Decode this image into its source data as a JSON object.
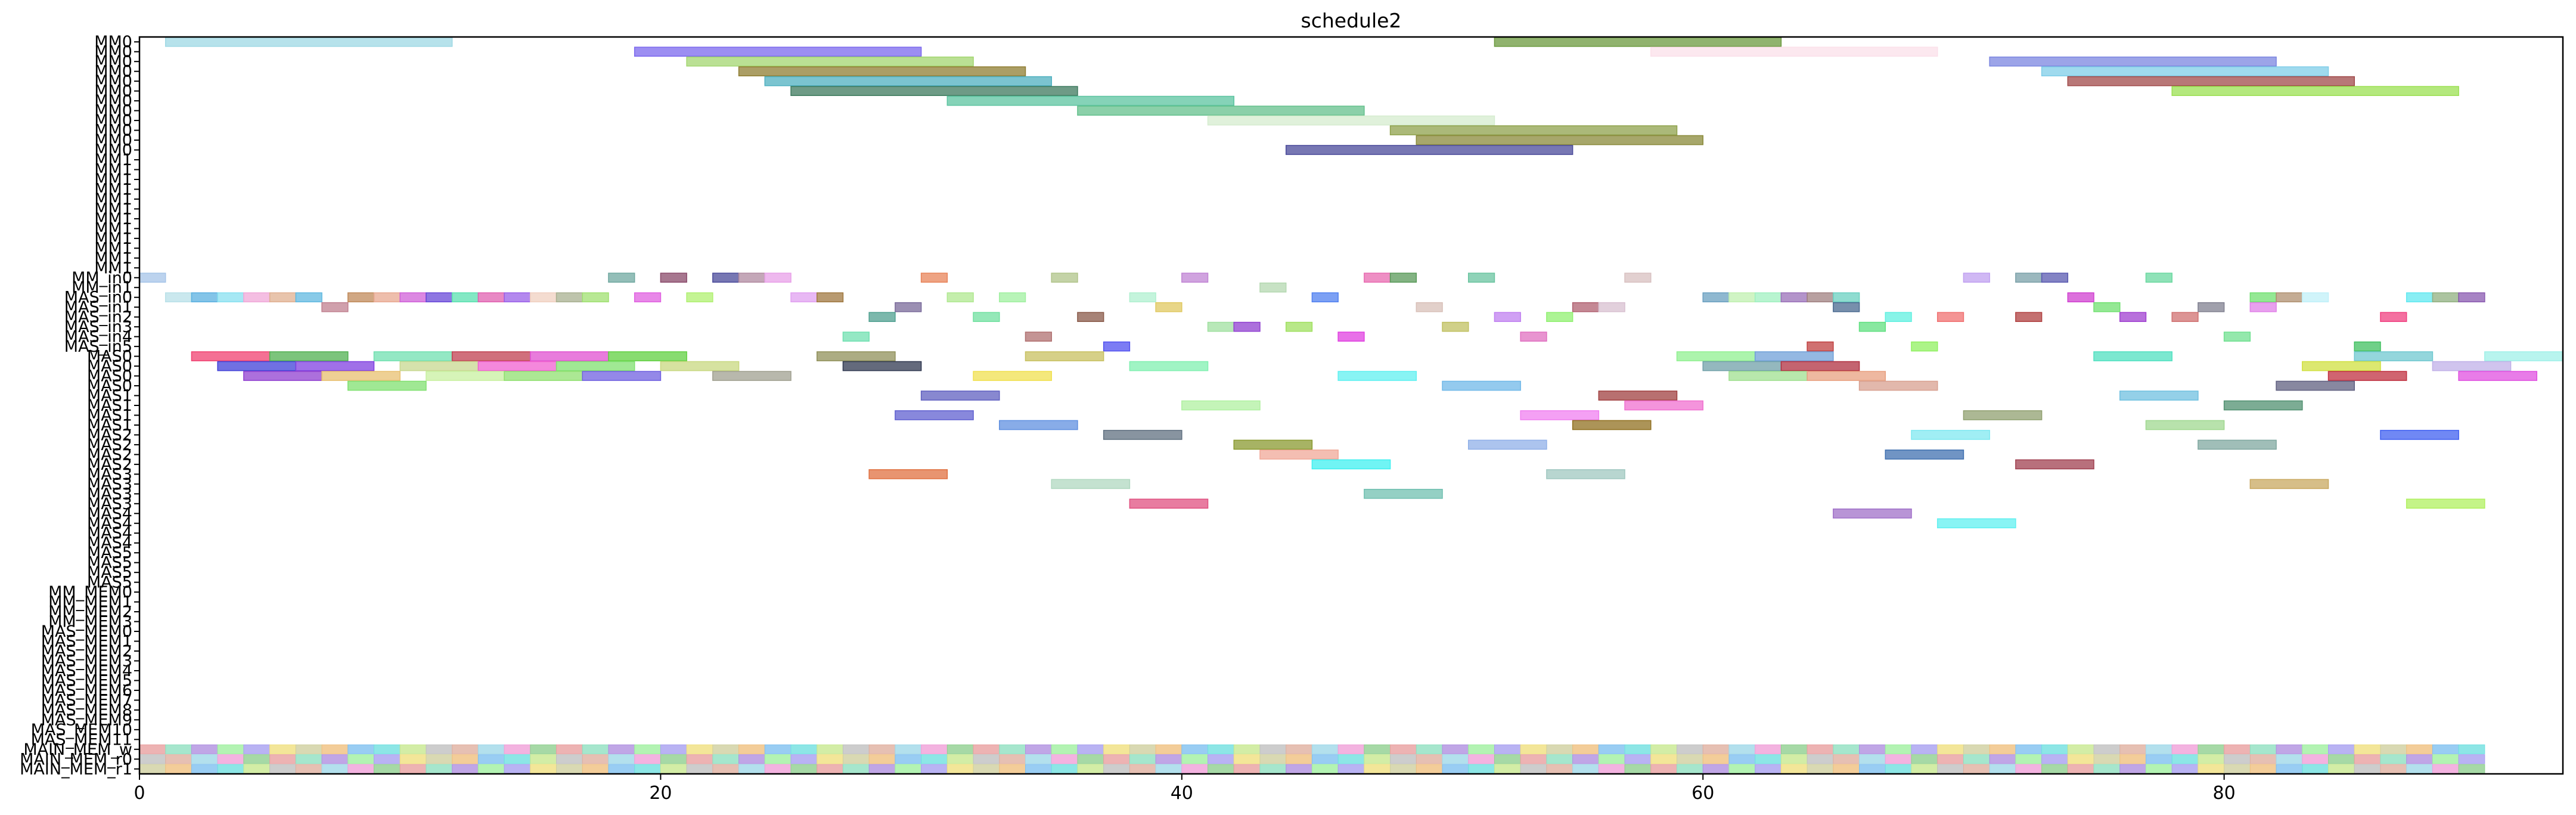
{
  "chart_data": {
    "type": "gantt",
    "title": "schedule2",
    "xlabel": "",
    "ylabel": "",
    "xlim": [
      0,
      93
    ],
    "xticks": [
      0,
      20,
      40,
      60,
      80
    ],
    "grid": false,
    "legend": "none",
    "rows": [
      "MM0",
      "MM0",
      "MM0",
      "MM0",
      "MM0",
      "MM0",
      "MM0",
      "MM0",
      "MM0",
      "MM0",
      "MM0",
      "MM0",
      "MM1",
      "MM1",
      "MM1",
      "MM1",
      "MM1",
      "MM1",
      "MM1",
      "MM1",
      "MM1",
      "MM1",
      "MM1",
      "MM1",
      "MM_in0",
      "MM_in1",
      "MAS_in0",
      "MAS_in1",
      "MAS_in2",
      "MAS_in3",
      "MAS_in4",
      "MAS_in5",
      "MAS0",
      "MAS0",
      "MAS0",
      "MAS0",
      "MAS1",
      "MAS1",
      "MAS1",
      "MAS1",
      "MAS2",
      "MAS2",
      "MAS2",
      "MAS2",
      "MAS3",
      "MAS3",
      "MAS3",
      "MAS3",
      "MAS4",
      "MAS4",
      "MAS4",
      "MAS4",
      "MAS5",
      "MAS5",
      "MAS5",
      "MAS5",
      "MM_MEM0",
      "MM_MEM1",
      "MM_MEM2",
      "MM_MEM3",
      "MAS_MEM0",
      "MAS_MEM1",
      "MAS_MEM2",
      "MAS_MEM3",
      "MAS_MEM4",
      "MAS_MEM5",
      "MAS_MEM6",
      "MAS_MEM7",
      "MAS_MEM8",
      "MAS_MEM9",
      "MAS_MEM10",
      "MAS_MEM11",
      "MAIN_MEM_w",
      "MAIN_MEM_r0",
      "MAIN_MEM_r1"
    ],
    "bars": [
      {
        "row": 0,
        "start": 1,
        "end": 12,
        "color": "#9ed8e4"
      },
      {
        "row": 0,
        "start": 52,
        "end": 63,
        "color": "#6b9a3e"
      },
      {
        "row": 1,
        "start": 19,
        "end": 30,
        "color": "#7b68ee"
      },
      {
        "row": 1,
        "start": 58,
        "end": 69,
        "color": "#fbe0ea"
      },
      {
        "row": 2,
        "start": 21,
        "end": 32,
        "color": "#a3d670"
      },
      {
        "row": 2,
        "start": 71,
        "end": 82,
        "color": "#7b86e0"
      },
      {
        "row": 3,
        "start": 23,
        "end": 34,
        "color": "#8f7d32"
      },
      {
        "row": 3,
        "start": 73,
        "end": 84,
        "color": "#7fcde8"
      },
      {
        "row": 4,
        "start": 24,
        "end": 35,
        "color": "#4fb0c0"
      },
      {
        "row": 4,
        "start": 74,
        "end": 85,
        "color": "#a04a4a"
      },
      {
        "row": 5,
        "start": 25,
        "end": 36,
        "color": "#3e7a5e"
      },
      {
        "row": 5,
        "start": 78,
        "end": 89,
        "color": "#9be051"
      },
      {
        "row": 6,
        "start": 31,
        "end": 42,
        "color": "#5cc4a0"
      },
      {
        "row": 7,
        "start": 36,
        "end": 47,
        "color": "#64c08c"
      },
      {
        "row": 8,
        "start": 41,
        "end": 52,
        "color": "#d5eccf"
      },
      {
        "row": 9,
        "start": 48,
        "end": 59,
        "color": "#8fa24c"
      },
      {
        "row": 10,
        "start": 49,
        "end": 60,
        "color": "#8a8a3a"
      },
      {
        "row": 11,
        "start": 44,
        "end": 55,
        "color": "#4a4a9a"
      },
      {
        "row": 24,
        "start": 0,
        "end": 1,
        "color": "#a5c4e8"
      },
      {
        "row": 24,
        "start": 18,
        "end": 19,
        "color": "#6fa8a0"
      },
      {
        "row": 24,
        "start": 20,
        "end": 21,
        "color": "#8a4a6a"
      },
      {
        "row": 24,
        "start": 22,
        "end": 23,
        "color": "#4a4a9a"
      },
      {
        "row": 24,
        "start": 23,
        "end": 24,
        "color": "#b08aa0"
      },
      {
        "row": 24,
        "start": 24,
        "end": 25,
        "color": "#e8a0e8"
      },
      {
        "row": 24,
        "start": 30,
        "end": 31,
        "color": "#e8845a"
      },
      {
        "row": 24,
        "start": 35,
        "end": 36,
        "color": "#b0c48a"
      },
      {
        "row": 24,
        "start": 40,
        "end": 41,
        "color": "#c084d4"
      },
      {
        "row": 24,
        "start": 47,
        "end": 48,
        "color": "#e86ab0"
      },
      {
        "row": 24,
        "start": 48,
        "end": 49,
        "color": "#5a9a5a"
      },
      {
        "row": 24,
        "start": 51,
        "end": 52,
        "color": "#6ac4a0"
      },
      {
        "row": 24,
        "start": 57,
        "end": 58,
        "color": "#d8c0c0"
      },
      {
        "row": 24,
        "start": 70,
        "end": 71,
        "color": "#c0a0f0"
      },
      {
        "row": 24,
        "start": 72,
        "end": 73,
        "color": "#7aa0a8"
      },
      {
        "row": 24,
        "start": 73,
        "end": 74,
        "color": "#5a5ab0"
      },
      {
        "row": 24,
        "start": 77,
        "end": 78,
        "color": "#6ad8a0"
      },
      {
        "row": 25,
        "start": 43,
        "end": 44,
        "color": "#b4d8b0"
      },
      {
        "row": 26,
        "start": 1,
        "end": 2,
        "color": "#b8e0e8"
      },
      {
        "row": 26,
        "start": 2,
        "end": 3,
        "color": "#5ab0e0"
      },
      {
        "row": 26,
        "start": 3,
        "end": 4,
        "color": "#88e0f0"
      },
      {
        "row": 26,
        "start": 4,
        "end": 5,
        "color": "#f0a8d8"
      },
      {
        "row": 26,
        "start": 5,
        "end": 6,
        "color": "#e0b090"
      },
      {
        "row": 26,
        "start": 6,
        "end": 7,
        "color": "#60b8e0"
      },
      {
        "row": 26,
        "start": 8,
        "end": 9,
        "color": "#c08a5a"
      },
      {
        "row": 26,
        "start": 9,
        "end": 10,
        "color": "#e8a890"
      },
      {
        "row": 26,
        "start": 10,
        "end": 11,
        "color": "#d060d8"
      },
      {
        "row": 26,
        "start": 11,
        "end": 12,
        "color": "#6848d8"
      },
      {
        "row": 26,
        "start": 12,
        "end": 13,
        "color": "#5ae0b0"
      },
      {
        "row": 26,
        "start": 13,
        "end": 14,
        "color": "#e060b0"
      },
      {
        "row": 26,
        "start": 14,
        "end": 15,
        "color": "#9a60e8"
      },
      {
        "row": 26,
        "start": 15,
        "end": 16,
        "color": "#f0d0c0"
      },
      {
        "row": 26,
        "start": 16,
        "end": 17,
        "color": "#a8b090"
      },
      {
        "row": 26,
        "start": 17,
        "end": 18,
        "color": "#a0e070"
      },
      {
        "row": 26,
        "start": 19,
        "end": 20,
        "color": "#e060e0"
      },
      {
        "row": 26,
        "start": 21,
        "end": 22,
        "color": "#b0f070"
      },
      {
        "row": 26,
        "start": 25,
        "end": 26,
        "color": "#e0a0f0"
      },
      {
        "row": 26,
        "start": 26,
        "end": 27,
        "color": "#a07840"
      },
      {
        "row": 26,
        "start": 31,
        "end": 32,
        "color": "#b0e890"
      },
      {
        "row": 26,
        "start": 33,
        "end": 34,
        "color": "#a0f0a0"
      },
      {
        "row": 26,
        "start": 38,
        "end": 39,
        "color": "#b0f0d0"
      },
      {
        "row": 26,
        "start": 45,
        "end": 46,
        "color": "#5080f0"
      },
      {
        "row": 26,
        "start": 60,
        "end": 61,
        "color": "#6aa0c0"
      },
      {
        "row": 26,
        "start": 61,
        "end": 62,
        "color": "#c0f0b0"
      },
      {
        "row": 26,
        "start": 62,
        "end": 63,
        "color": "#a0f0c0"
      },
      {
        "row": 26,
        "start": 63,
        "end": 64,
        "color": "#9a70b8"
      },
      {
        "row": 26,
        "start": 64,
        "end": 65,
        "color": "#a08080"
      },
      {
        "row": 26,
        "start": 65,
        "end": 66,
        "color": "#6ad0c0"
      },
      {
        "row": 26,
        "start": 74,
        "end": 75,
        "color": "#d040d0"
      },
      {
        "row": 26,
        "start": 81,
        "end": 82,
        "color": "#70e070"
      },
      {
        "row": 26,
        "start": 82,
        "end": 83,
        "color": "#b09070"
      },
      {
        "row": 26,
        "start": 83,
        "end": 84,
        "color": "#c0f0f8"
      },
      {
        "row": 26,
        "start": 87,
        "end": 88,
        "color": "#60e8f0"
      },
      {
        "row": 26,
        "start": 88,
        "end": 89,
        "color": "#90b080"
      },
      {
        "row": 26,
        "start": 89,
        "end": 90,
        "color": "#8a5ab0"
      },
      {
        "row": 27,
        "start": 7,
        "end": 8,
        "color": "#c08090"
      },
      {
        "row": 27,
        "start": 29,
        "end": 30,
        "color": "#7a6a9a"
      },
      {
        "row": 27,
        "start": 39,
        "end": 40,
        "color": "#e0c860"
      },
      {
        "row": 27,
        "start": 49,
        "end": 50,
        "color": "#d8c0b8"
      },
      {
        "row": 27,
        "start": 55,
        "end": 56,
        "color": "#b06070"
      },
      {
        "row": 27,
        "start": 56,
        "end": 57,
        "color": "#d8c0d0"
      },
      {
        "row": 27,
        "start": 65,
        "end": 66,
        "color": "#4a6a90"
      },
      {
        "row": 27,
        "start": 75,
        "end": 76,
        "color": "#70e070"
      },
      {
        "row": 27,
        "start": 79,
        "end": 80,
        "color": "#808090"
      },
      {
        "row": 27,
        "start": 81,
        "end": 82,
        "color": "#e080e8"
      },
      {
        "row": 28,
        "start": 28,
        "end": 29,
        "color": "#50a090"
      },
      {
        "row": 28,
        "start": 32,
        "end": 33,
        "color": "#70e0a0"
      },
      {
        "row": 28,
        "start": 36,
        "end": 37,
        "color": "#8a5a4a"
      },
      {
        "row": 28,
        "start": 52,
        "end": 53,
        "color": "#c080f0"
      },
      {
        "row": 28,
        "start": 54,
        "end": 55,
        "color": "#90f070"
      },
      {
        "row": 28,
        "start": 67,
        "end": 68,
        "color": "#60f0e0"
      },
      {
        "row": 28,
        "start": 69,
        "end": 70,
        "color": "#f07070"
      },
      {
        "row": 28,
        "start": 72,
        "end": 73,
        "color": "#b04040"
      },
      {
        "row": 28,
        "start": 76,
        "end": 77,
        "color": "#a040d0"
      },
      {
        "row": 28,
        "start": 78,
        "end": 79,
        "color": "#d07070"
      },
      {
        "row": 28,
        "start": 86,
        "end": 87,
        "color": "#f04080"
      },
      {
        "row": 29,
        "start": 41,
        "end": 42,
        "color": "#a0e0a0"
      },
      {
        "row": 29,
        "start": 42,
        "end": 43,
        "color": "#9040d0"
      },
      {
        "row": 29,
        "start": 44,
        "end": 45,
        "color": "#a0e060"
      },
      {
        "row": 29,
        "start": 50,
        "end": 51,
        "color": "#c0c060"
      },
      {
        "row": 29,
        "start": 66,
        "end": 67,
        "color": "#60e080"
      },
      {
        "row": 30,
        "start": 27,
        "end": 28,
        "color": "#70e0b0"
      },
      {
        "row": 30,
        "start": 34,
        "end": 35,
        "color": "#b07070"
      },
      {
        "row": 30,
        "start": 46,
        "end": 47,
        "color": "#e040e0"
      },
      {
        "row": 30,
        "start": 53,
        "end": 54,
        "color": "#e070c0"
      },
      {
        "row": 30,
        "start": 80,
        "end": 81,
        "color": "#70e090"
      },
      {
        "row": 31,
        "start": 37,
        "end": 38,
        "color": "#5050f0"
      },
      {
        "row": 31,
        "start": 64,
        "end": 65,
        "color": "#c04040"
      },
      {
        "row": 31,
        "start": 68,
        "end": 69,
        "color": "#90f060"
      },
      {
        "row": 31,
        "start": 85,
        "end": 86,
        "color": "#40c060"
      },
      {
        "row": 32,
        "start": 2,
        "end": 5,
        "color": "#f04070"
      },
      {
        "row": 32,
        "start": 5,
        "end": 8,
        "color": "#50b050"
      },
      {
        "row": 32,
        "start": 9,
        "end": 12,
        "color": "#70e0b0"
      },
      {
        "row": 32,
        "start": 12,
        "end": 15,
        "color": "#c04050"
      },
      {
        "row": 32,
        "start": 15,
        "end": 18,
        "color": "#e050d0"
      },
      {
        "row": 32,
        "start": 18,
        "end": 21,
        "color": "#60d040"
      },
      {
        "row": 32,
        "start": 26,
        "end": 29,
        "color": "#90905a"
      },
      {
        "row": 32,
        "start": 34,
        "end": 37,
        "color": "#c8c060"
      },
      {
        "row": 32,
        "start": 59,
        "end": 62,
        "color": "#90f090"
      },
      {
        "row": 32,
        "start": 62,
        "end": 65,
        "color": "#70a0d8"
      },
      {
        "row": 32,
        "start": 75,
        "end": 78,
        "color": "#50e0c0"
      },
      {
        "row": 32,
        "start": 85,
        "end": 88,
        "color": "#70c8d0"
      },
      {
        "row": 32,
        "start": 90,
        "end": 93,
        "color": "#a0f0e8"
      },
      {
        "row": 33,
        "start": 3,
        "end": 6,
        "color": "#4040d8"
      },
      {
        "row": 33,
        "start": 6,
        "end": 9,
        "color": "#8040e0"
      },
      {
        "row": 33,
        "start": 10,
        "end": 13,
        "color": "#c8d890"
      },
      {
        "row": 33,
        "start": 13,
        "end": 16,
        "color": "#f060d0"
      },
      {
        "row": 33,
        "start": 16,
        "end": 19,
        "color": "#80e070"
      },
      {
        "row": 33,
        "start": 20,
        "end": 23,
        "color": "#c8d880"
      },
      {
        "row": 33,
        "start": 27,
        "end": 30,
        "color": "#303850"
      },
      {
        "row": 33,
        "start": 38,
        "end": 41,
        "color": "#80f0b0"
      },
      {
        "row": 33,
        "start": 60,
        "end": 63,
        "color": "#70a0a8"
      },
      {
        "row": 33,
        "start": 63,
        "end": 66,
        "color": "#b03040"
      },
      {
        "row": 33,
        "start": 83,
        "end": 86,
        "color": "#d0e040"
      },
      {
        "row": 33,
        "start": 88,
        "end": 91,
        "color": "#c0b0e8"
      },
      {
        "row": 34,
        "start": 4,
        "end": 7,
        "color": "#9040d0"
      },
      {
        "row": 34,
        "start": 7,
        "end": 10,
        "color": "#e8c070"
      },
      {
        "row": 34,
        "start": 11,
        "end": 14,
        "color": "#c8f0a0"
      },
      {
        "row": 34,
        "start": 14,
        "end": 17,
        "color": "#90e070"
      },
      {
        "row": 34,
        "start": 17,
        "end": 20,
        "color": "#7060e0"
      },
      {
        "row": 34,
        "start": 22,
        "end": 25,
        "color": "#a0a090"
      },
      {
        "row": 34,
        "start": 32,
        "end": 35,
        "color": "#f0e050"
      },
      {
        "row": 34,
        "start": 46,
        "end": 49,
        "color": "#60f0f0"
      },
      {
        "row": 34,
        "start": 61,
        "end": 64,
        "color": "#a0e090"
      },
      {
        "row": 34,
        "start": 64,
        "end": 67,
        "color": "#e8a080"
      },
      {
        "row": 34,
        "start": 84,
        "end": 87,
        "color": "#c03040"
      },
      {
        "row": 34,
        "start": 89,
        "end": 92,
        "color": "#e050e0"
      },
      {
        "row": 35,
        "start": 8,
        "end": 11,
        "color": "#80e070"
      },
      {
        "row": 35,
        "start": 50,
        "end": 53,
        "color": "#70b8e8"
      },
      {
        "row": 35,
        "start": 66,
        "end": 69,
        "color": "#d8a090"
      },
      {
        "row": 35,
        "start": 82,
        "end": 85,
        "color": "#606080"
      },
      {
        "row": 36,
        "start": 30,
        "end": 33,
        "color": "#6060c0"
      },
      {
        "row": 36,
        "start": 56,
        "end": 59,
        "color": "#a04040"
      },
      {
        "row": 36,
        "start": 76,
        "end": 79,
        "color": "#70c0e0"
      },
      {
        "row": 37,
        "start": 40,
        "end": 43,
        "color": "#b0f0a0"
      },
      {
        "row": 37,
        "start": 57,
        "end": 60,
        "color": "#f070d0"
      },
      {
        "row": 37,
        "start": 80,
        "end": 83,
        "color": "#509070"
      },
      {
        "row": 38,
        "start": 29,
        "end": 32,
        "color": "#6060d0"
      },
      {
        "row": 38,
        "start": 53,
        "end": 56,
        "color": "#f080f0"
      },
      {
        "row": 38,
        "start": 70,
        "end": 73,
        "color": "#90a070"
      },
      {
        "row": 39,
        "start": 33,
        "end": 36,
        "color": "#6090e0"
      },
      {
        "row": 39,
        "start": 55,
        "end": 58,
        "color": "#907020"
      },
      {
        "row": 39,
        "start": 77,
        "end": 80,
        "color": "#a0d890"
      },
      {
        "row": 40,
        "start": 37,
        "end": 40,
        "color": "#607080"
      },
      {
        "row": 40,
        "start": 68,
        "end": 71,
        "color": "#80e8f0"
      },
      {
        "row": 40,
        "start": 86,
        "end": 89,
        "color": "#4060f0"
      },
      {
        "row": 41,
        "start": 42,
        "end": 45,
        "color": "#8a9a30"
      },
      {
        "row": 41,
        "start": 51,
        "end": 54,
        "color": "#90b0e8"
      },
      {
        "row": 41,
        "start": 79,
        "end": 82,
        "color": "#80a8a0"
      },
      {
        "row": 42,
        "start": 43,
        "end": 46,
        "color": "#f0a898"
      },
      {
        "row": 42,
        "start": 67,
        "end": 70,
        "color": "#4070b0"
      },
      {
        "row": 43,
        "start": 45,
        "end": 48,
        "color": "#40f0f0"
      },
      {
        "row": 43,
        "start": 72,
        "end": 75,
        "color": "#a04050"
      },
      {
        "row": 44,
        "start": 28,
        "end": 31,
        "color": "#e07040"
      },
      {
        "row": 44,
        "start": 54,
        "end": 57,
        "color": "#a0c8c0"
      },
      {
        "row": 45,
        "start": 35,
        "end": 38,
        "color": "#b0d8c0"
      },
      {
        "row": 45,
        "start": 81,
        "end": 84,
        "color": "#c8a860"
      },
      {
        "row": 46,
        "start": 47,
        "end": 50,
        "color": "#70c0b0"
      },
      {
        "row": 47,
        "start": 38,
        "end": 41,
        "color": "#e05080"
      },
      {
        "row": 47,
        "start": 87,
        "end": 90,
        "color": "#b0f060"
      },
      {
        "row": 48,
        "start": 65,
        "end": 68,
        "color": "#a070c8"
      },
      {
        "row": 49,
        "start": 69,
        "end": 72,
        "color": "#60f0f0"
      }
    ]
  }
}
